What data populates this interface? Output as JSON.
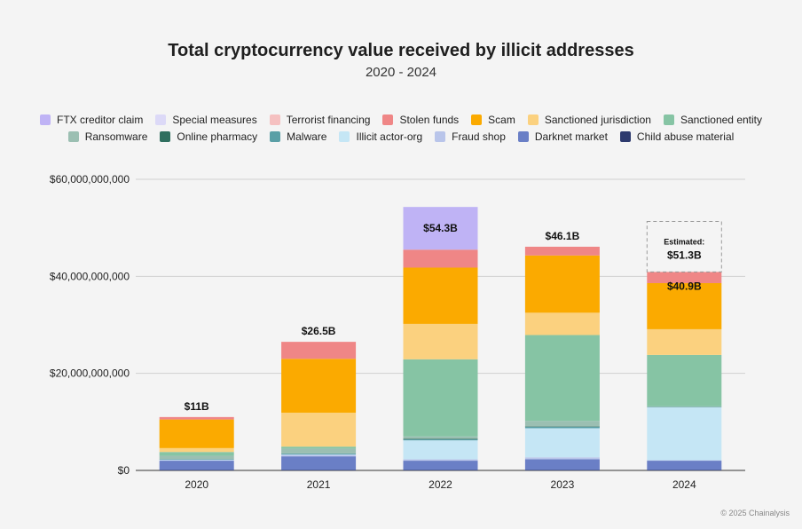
{
  "chart_data": {
    "type": "bar",
    "stacked": true,
    "title": "Total cryptocurrency value received by illicit addresses",
    "subtitle": "2020 - 2024",
    "xlabel": "",
    "ylabel": "",
    "categories": [
      "2020",
      "2021",
      "2022",
      "2023",
      "2024"
    ],
    "ylim": [
      0,
      60000000000
    ],
    "yticks": [
      {
        "value": 0,
        "label": "$0"
      },
      {
        "value": 20000000000,
        "label": "$20,000,000,000"
      },
      {
        "value": 40000000000,
        "label": "$40,000,000,000"
      },
      {
        "value": 60000000000,
        "label": "$60,000,000,000"
      }
    ],
    "grid": true,
    "legend_position": "top",
    "series": [
      {
        "name": "Child abuse material",
        "color": "#2d3a6e",
        "values": [
          100000000,
          100000000,
          100000000,
          100000000,
          100000000
        ]
      },
      {
        "name": "Darknet market",
        "color": "#6a7fc6",
        "values": [
          1900000000,
          2800000000,
          1900000000,
          2200000000,
          1900000000
        ]
      },
      {
        "name": "Fraud shop",
        "color": "#b9c5ea",
        "values": [
          100000000,
          300000000,
          300000000,
          400000000,
          100000000
        ]
      },
      {
        "name": "Illicit actor-org",
        "color": "#c5e6f5",
        "values": [
          100000000,
          100000000,
          3900000000,
          6000000000,
          10900000000
        ]
      },
      {
        "name": "Malware",
        "color": "#5a9fa6",
        "values": [
          100000000,
          200000000,
          200000000,
          300000000,
          100000000
        ]
      },
      {
        "name": "Online pharmacy",
        "color": "#2f6f5f",
        "values": [
          0,
          0,
          100000000,
          100000000,
          0
        ]
      },
      {
        "name": "Ransomware",
        "color": "#9bbfb2",
        "values": [
          700000000,
          1000000000,
          500000000,
          1100000000,
          100000000
        ]
      },
      {
        "name": "Sanctioned entity",
        "color": "#86c4a4",
        "values": [
          800000000,
          400000000,
          15900000000,
          17700000000,
          10600000000
        ]
      },
      {
        "name": "Sanctioned jurisdiction",
        "color": "#fbd17f",
        "values": [
          800000000,
          7000000000,
          7300000000,
          4600000000,
          5300000000
        ]
      },
      {
        "name": "Scam",
        "color": "#fbaa00",
        "values": [
          5900000000,
          11100000000,
          11600000000,
          11800000000,
          9500000000
        ]
      },
      {
        "name": "Stolen funds",
        "color": "#ef8686",
        "values": [
          500000000,
          3500000000,
          3700000000,
          1800000000,
          2300000000
        ]
      },
      {
        "name": "Terrorist financing",
        "color": "#f5c0c0",
        "values": [
          0,
          0,
          0,
          0,
          0
        ]
      },
      {
        "name": "Special measures",
        "color": "#dcd9f7",
        "values": [
          0,
          0,
          0,
          0,
          0
        ]
      },
      {
        "name": "FTX creditor claim",
        "color": "#bfb3f5",
        "values": [
          0,
          0,
          8800000000,
          0,
          0
        ]
      }
    ],
    "legend_order": [
      "FTX creditor claim",
      "Special measures",
      "Terrorist financing",
      "Stolen funds",
      "Scam",
      "Sanctioned jurisdiction",
      "Sanctioned entity",
      "Ransomware",
      "Online pharmacy",
      "Malware",
      "Illicit actor-org",
      "Fraud shop",
      "Darknet market",
      "Child abuse material"
    ],
    "data_labels": [
      "$11B",
      "$26.5B",
      "$54.3B",
      "$46.1B",
      "$40.9B"
    ],
    "estimate": {
      "category": "2024",
      "value": 51300000000,
      "label_line1": "Estimated:",
      "label_line2": "$51.3B"
    }
  },
  "footer": "© 2025 Chainalysis"
}
